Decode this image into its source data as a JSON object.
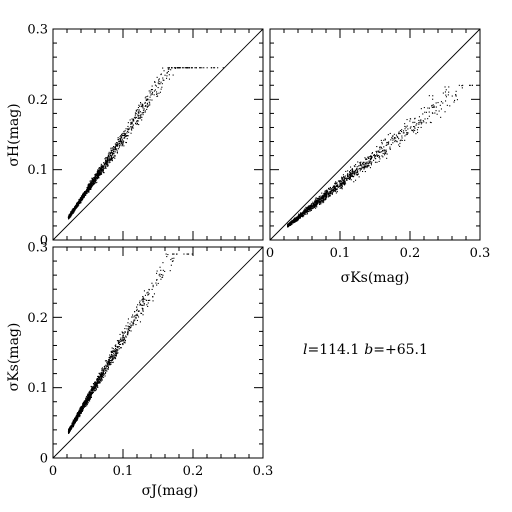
{
  "figure": {
    "annotation": {
      "l_symbol": "l",
      "l_value": "=114.1",
      "b_symbol": "b",
      "b_value": "=+65.1"
    }
  },
  "chart_data": [
    {
      "id": "top-left",
      "type": "scatter",
      "xlabel": "",
      "ylabel": "σH(mag)",
      "xlim": [
        0,
        0.3
      ],
      "ylim": [
        0,
        0.3
      ],
      "yticks": [
        0,
        0.1,
        0.2,
        0.3
      ],
      "ytick_labels": [
        "0",
        "0.1",
        "0.2",
        "0.3"
      ],
      "xticks": [],
      "xtick_labels": [],
      "reference_line": "y = x",
      "point_cloud": {
        "count": 1400,
        "seed": 11,
        "x_min": 0.022,
        "x_scale": 0.045,
        "x_max": 0.26,
        "y_slope": 1.45,
        "y_spread": 0.15,
        "y_max": 0.245
      },
      "points": []
    },
    {
      "id": "top-right",
      "type": "scatter",
      "xlabel": "σKs(mag)",
      "ylabel": "",
      "xlim": [
        0,
        0.3
      ],
      "ylim": [
        0,
        0.3
      ],
      "xticks": [
        0,
        0.1,
        0.2,
        0.3
      ],
      "xtick_labels": [
        "0",
        "0.1",
        "0.2",
        "0.3"
      ],
      "yticks": [],
      "ytick_labels": [],
      "reference_line": "y = x",
      "point_cloud": {
        "count": 1400,
        "seed": 23,
        "x_min": 0.025,
        "x_scale": 0.075,
        "x_max": 0.29,
        "y_slope": 0.8,
        "y_spread": 0.12,
        "y_max": 0.22
      },
      "points": []
    },
    {
      "id": "bottom-left",
      "type": "scatter",
      "xlabel": "σJ(mag)",
      "ylabel": "σKs(mag)",
      "xlim": [
        0,
        0.3
      ],
      "ylim": [
        0,
        0.3
      ],
      "xticks": [
        0,
        0.1,
        0.2,
        0.3
      ],
      "xtick_labels": [
        "0",
        "0.1",
        "0.2",
        "0.3"
      ],
      "yticks": [
        0,
        0.1,
        0.2,
        0.3
      ],
      "ytick_labels": [
        "0",
        "0.1",
        "0.2",
        "0.3"
      ],
      "reference_line": "y = x",
      "point_cloud": {
        "count": 1400,
        "seed": 37,
        "x_min": 0.022,
        "x_scale": 0.04,
        "x_max": 0.2,
        "y_slope": 1.7,
        "y_spread": 0.18,
        "y_max": 0.29
      },
      "points": []
    }
  ]
}
